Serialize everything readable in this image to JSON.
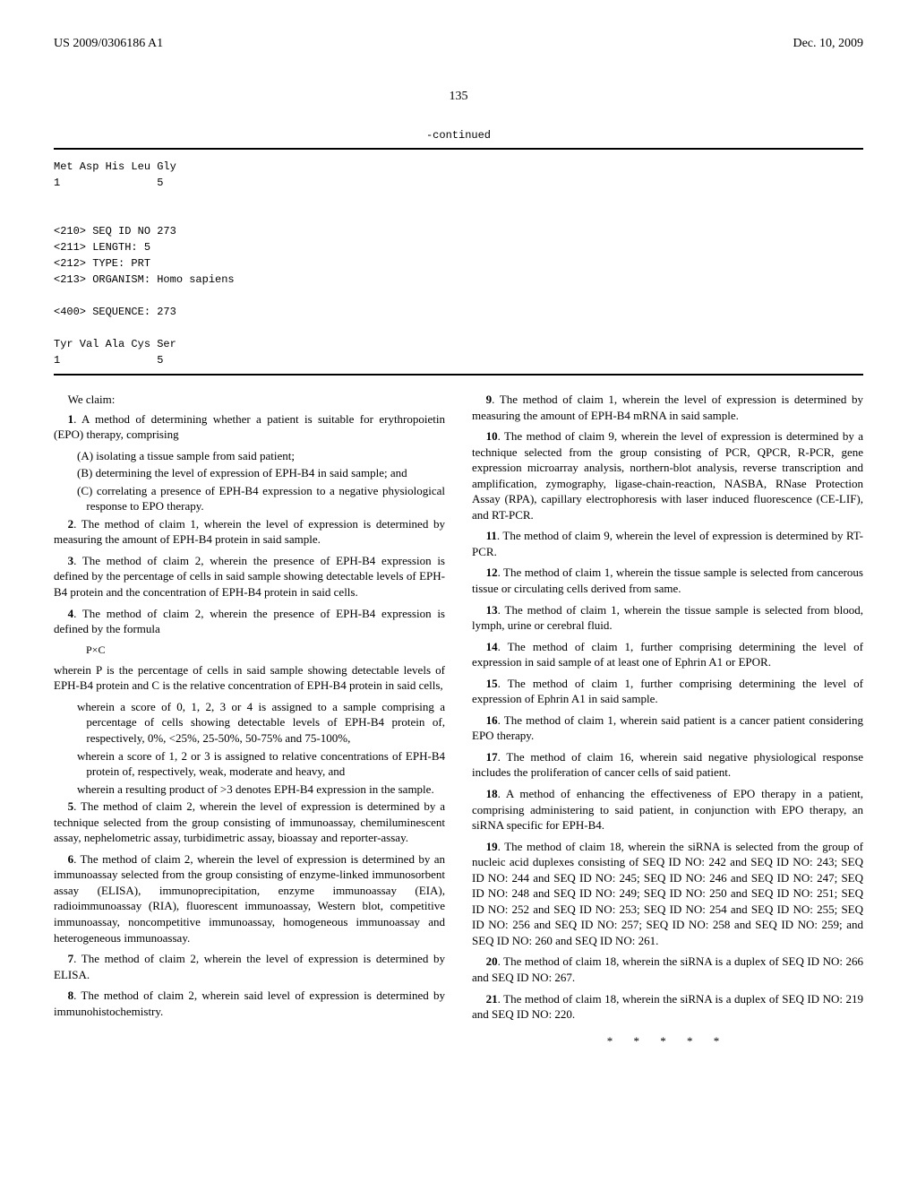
{
  "header": {
    "pub_no": "US 2009/0306186 A1",
    "date": "Dec. 10, 2009"
  },
  "page_number": "135",
  "continued_label": "-continued",
  "sequence_block": "Met Asp His Leu Gly\n1               5\n\n\n<210> SEQ ID NO 273\n<211> LENGTH: 5\n<212> TYPE: PRT\n<213> ORGANISM: Homo sapiens\n\n<400> SEQUENCE: 273\n\nTyr Val Ala Cys Ser\n1               5",
  "we_claim": "We claim:",
  "claims_left": [
    {
      "n": "1",
      "text": ". A method of determining whether a patient is suitable for erythropoietin (EPO) therapy, comprising",
      "subs": [
        "(A) isolating a tissue sample from said patient;",
        "(B) determining the level of expression of EPH-B4 in said sample; and",
        "(C) correlating a presence of EPH-B4 expression to a negative physiological response to EPO therapy."
      ]
    },
    {
      "n": "2",
      "text": ". The method of claim 1, wherein the level of expression is determined by measuring the amount of EPH-B4 protein in said sample."
    },
    {
      "n": "3",
      "text": ". The method of claim 2, wherein the presence of EPH-B4 expression is defined by the percentage of cells in said sample showing detectable levels of EPH-B4 protein and the concentration of EPH-B4 protein in said cells."
    },
    {
      "n": "4",
      "text": ". The method of claim 2, wherein the presence of EPH-B4 expression is defined by the formula"
    }
  ],
  "formula": "P×C",
  "claim4_tail": "wherein P is the percentage of cells in said sample showing detectable levels of EPH-B4 protein and C is the relative concentration of EPH-B4 protein in said cells,",
  "claim4_subs": [
    "wherein a score of 0, 1, 2, 3 or 4 is assigned to a sample comprising a percentage of cells showing detectable levels of EPH-B4 protein of, respectively, 0%, <25%, 25-50%, 50-75% and 75-100%,",
    "wherein a score of 1, 2 or 3 is assigned to relative concentrations of EPH-B4 protein of, respectively, weak, moderate and heavy, and",
    "wherein a resulting product of >3 denotes EPH-B4 expression in the sample."
  ],
  "claims_left_2": [
    {
      "n": "5",
      "text": ". The method of claim 2, wherein the level of expression is determined by a technique selected from the group consisting of immunoassay, chemiluminescent assay, nephelometric assay, turbidimetric assay, bioassay and reporter-assay."
    },
    {
      "n": "6",
      "text": ". The method of claim 2, wherein the level of expression is determined by an immunoassay selected from the group consisting of enzyme-linked immunosorbent assay (ELISA), immunoprecipitation, enzyme immunoassay (EIA), radioimmunoassay (RIA), fluorescent immunoassay, Western blot, competitive immunoassay, noncompetitive immunoassay, homogeneous immunoassay and heterogeneous immunoassay."
    },
    {
      "n": "7",
      "text": ". The method of claim 2, wherein the level of expression is determined by ELISA."
    },
    {
      "n": "8",
      "text": ". The method of claim 2, wherein said level of expression is determined by immunohistochemistry."
    }
  ],
  "claims_right": [
    {
      "n": "9",
      "text": ". The method of claim 1, wherein the level of expression is determined by measuring the amount of EPH-B4 mRNA in said sample."
    },
    {
      "n": "10",
      "text": ". The method of claim 9, wherein the level of expression is determined by a technique selected from the group consisting of PCR, QPCR, R-PCR, gene expression microarray analysis, northern-blot analysis, reverse transcription and amplification, zymography, ligase-chain-reaction, NASBA, RNase Protection Assay (RPA), capillary electrophoresis with laser induced fluorescence (CE-LIF), and RT-PCR."
    },
    {
      "n": "11",
      "text": ". The method of claim 9, wherein the level of expression is determined by RT-PCR."
    },
    {
      "n": "12",
      "text": ". The method of claim 1, wherein the tissue sample is selected from cancerous tissue or circulating cells derived from same."
    },
    {
      "n": "13",
      "text": ". The method of claim 1, wherein the tissue sample is selected from blood, lymph, urine or cerebral fluid."
    },
    {
      "n": "14",
      "text": ". The method of claim 1, further comprising determining the level of expression in said sample of at least one of Ephrin A1 or EPOR."
    },
    {
      "n": "15",
      "text": ". The method of claim 1, further comprising determining the level of expression of Ephrin A1 in said sample."
    },
    {
      "n": "16",
      "text": ". The method of claim 1, wherein said patient is a cancer patient considering EPO therapy."
    },
    {
      "n": "17",
      "text": ". The method of claim 16, wherein said negative physiological response includes the proliferation of cancer cells of said patient."
    },
    {
      "n": "18",
      "text": ". A method of enhancing the effectiveness of EPO therapy in a patient, comprising administering to said patient, in conjunction with EPO therapy, an siRNA specific for EPH-B4."
    },
    {
      "n": "19",
      "text": ". The method of claim 18, wherein the siRNA is selected from the group of nucleic acid duplexes consisting of SEQ ID NO: 242 and SEQ ID NO: 243; SEQ ID NO: 244 and SEQ ID NO: 245; SEQ ID NO: 246 and SEQ ID NO: 247; SEQ ID NO: 248 and SEQ ID NO: 249; SEQ ID NO: 250 and SEQ ID NO: 251; SEQ ID NO: 252 and SEQ ID NO: 253; SEQ ID NO: 254 and SEQ ID NO: 255; SEQ ID NO: 256 and SEQ ID NO: 257; SEQ ID NO: 258 and SEQ ID NO: 259; and SEQ ID NO: 260 and SEQ ID NO: 261."
    },
    {
      "n": "20",
      "text": ". The method of claim 18, wherein the siRNA is a duplex of SEQ ID NO: 266 and SEQ ID NO: 267."
    },
    {
      "n": "21",
      "text": ". The method of claim 18, wherein the siRNA is a duplex of SEQ ID NO: 219 and SEQ ID NO: 220."
    }
  ],
  "end_marks": "* * * * *"
}
